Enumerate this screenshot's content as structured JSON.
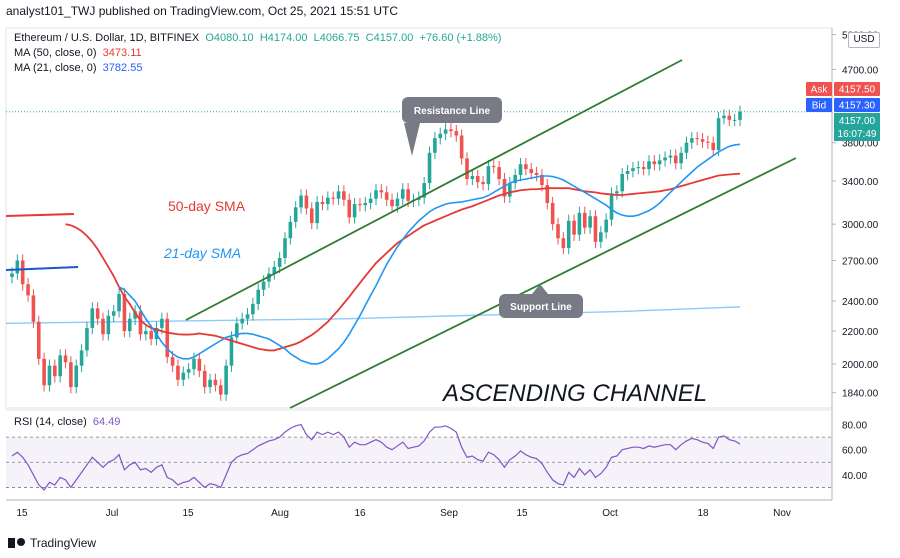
{
  "header": {
    "publisher": "analyst101_TWJ published on TradingView.com, Oct 25, 2021 15:51 UTC"
  },
  "instrument": {
    "name": "Ethereum / U.S. Dollar, 1D, BITFINEX",
    "open": "O4080.10",
    "high": "H4174.00",
    "low": "L4066.75",
    "close": "C4157.00",
    "change": "+76.60 (+1.88%)"
  },
  "indicators": {
    "ma50": {
      "label": "MA (50, close, 0)",
      "value": "3473.11",
      "color": "#e53935"
    },
    "ma21": {
      "label": "MA (21, close, 0)",
      "value": "3782.55",
      "color": "#2962ff"
    },
    "rsi": {
      "label": "RSI (14, close)",
      "value": "64.49",
      "color": "#7e57c2"
    }
  },
  "price_tags": {
    "ask_label": "Ask",
    "ask_value": "4157.50",
    "bid_label": "Bid",
    "bid_value": "4157.30",
    "last_value": "4157.00",
    "countdown": "16:07:49",
    "currency": "USD"
  },
  "annotations": {
    "resistance": "Resistance Line",
    "support": "Support Line",
    "sma50": "50-day SMA",
    "sma21": "21-day SMA",
    "channel": "ASCENDING CHANNEL"
  },
  "footer": {
    "brand": "TradingView"
  },
  "colors": {
    "up": "#26a69a",
    "down": "#ef5350",
    "channel": "#2e7d32",
    "ma50": "#e53935",
    "ma21": "#2196f3",
    "ma200": "#90caf9"
  },
  "chart_data": {
    "type": "candlestick",
    "timeframe": "1D",
    "x_tick_labels": [
      "15",
      "Jul",
      "15",
      "Aug",
      "16",
      "Sep",
      "15",
      "Oct",
      "18",
      "Nov"
    ],
    "y_tick_labels": [
      "5200.00",
      "4700.00",
      "4157.00",
      "3800.00",
      "3400.00",
      "3000.00",
      "2700.00",
      "2400.00",
      "2200.00",
      "2000.00",
      "1840.00"
    ],
    "y_scale": "log",
    "ylim": [
      1760,
      5300
    ],
    "rsi_tick_labels": [
      "80.00",
      "60.00",
      "40.00"
    ],
    "rsi_ylim": [
      20,
      90
    ],
    "rsi_bands": [
      70,
      50,
      30
    ],
    "closes": [
      2600,
      2700,
      2520,
      2440,
      2260,
      2030,
      1880,
      1990,
      1930,
      2050,
      2010,
      1870,
      1990,
      2080,
      2220,
      2350,
      2280,
      2180,
      2300,
      2330,
      2450,
      2200,
      2280,
      2330,
      2180,
      2200,
      2150,
      2220,
      2280,
      2040,
      1990,
      1910,
      1950,
      1970,
      2030,
      1960,
      1870,
      1910,
      1880,
      1830,
      1990,
      2160,
      2250,
      2280,
      2310,
      2380,
      2480,
      2540,
      2600,
      2650,
      2720,
      2880,
      3020,
      3150,
      3260,
      3140,
      3010,
      3200,
      3180,
      3240,
      3230,
      3300,
      3220,
      3060,
      3180,
      3170,
      3190,
      3230,
      3310,
      3290,
      3220,
      3160,
      3230,
      3320,
      3210,
      3220,
      3240,
      3380,
      3690,
      3850,
      3900,
      3950,
      3930,
      3880,
      3630,
      3420,
      3450,
      3390,
      3370,
      3550,
      3540,
      3420,
      3250,
      3380,
      3460,
      3570,
      3520,
      3480,
      3460,
      3360,
      3190,
      3000,
      2880,
      2800,
      3030,
      2910,
      3100,
      2970,
      3070,
      2850,
      2930,
      3040,
      3280,
      3300,
      3470,
      3500,
      3530,
      3540,
      3520,
      3600,
      3570,
      3610,
      3640,
      3660,
      3580,
      3690,
      3800,
      3850,
      3840,
      3810,
      3800,
      3720,
      4080,
      4110,
      4060,
      4060,
      4157
    ],
    "volatility_hint": "daily candles, range approx 3%",
    "sma50": [
      3000,
      2990,
      2970,
      2940,
      2900,
      2850,
      2790,
      2720,
      2650,
      2580,
      2500,
      2430,
      2380,
      2320,
      2270,
      2240,
      2220,
      2210,
      2200,
      2190,
      2185,
      2180,
      2178,
      2178,
      2180,
      2185,
      2180,
      2175,
      2170,
      2160,
      2150,
      2140,
      2130,
      2120,
      2110,
      2100,
      2090,
      2085,
      2080,
      2080,
      2090,
      2100,
      2110,
      2120,
      2135,
      2155,
      2175,
      2200,
      2230,
      2260,
      2300,
      2340,
      2385,
      2430,
      2480,
      2530,
      2580,
      2630,
      2680,
      2720,
      2760,
      2800,
      2840,
      2870,
      2900,
      2930,
      2960,
      2990,
      3010,
      3030,
      3050,
      3070,
      3090,
      3110,
      3130,
      3145,
      3160,
      3180,
      3200,
      3220,
      3240,
      3260,
      3275,
      3290,
      3300,
      3310,
      3315,
      3320,
      3320,
      3325,
      3330,
      3330,
      3330,
      3330,
      3330,
      3320,
      3310,
      3300,
      3295,
      3290,
      3280,
      3275,
      3270,
      3265,
      3265,
      3270,
      3275,
      3280,
      3285,
      3290,
      3295,
      3300,
      3310,
      3320,
      3335,
      3350,
      3365,
      3380,
      3395,
      3410,
      3425,
      3440,
      3455,
      3460,
      3465,
      3470,
      3473
    ],
    "sma21": [
      2500,
      2480,
      2440,
      2400,
      2340,
      2280,
      2230,
      2180,
      2130,
      2090,
      2060,
      2040,
      2030,
      2030,
      2040,
      2060,
      2080,
      2100,
      2120,
      2140,
      2160,
      2170,
      2180,
      2185,
      2185,
      2180,
      2170,
      2160,
      2150,
      2130,
      2110,
      2090,
      2060,
      2040,
      2020,
      2010,
      2000,
      2000,
      2010,
      2030,
      2060,
      2090,
      2130,
      2180,
      2240,
      2300,
      2370,
      2440,
      2510,
      2590,
      2670,
      2740,
      2810,
      2870,
      2930,
      2980,
      3030,
      3070,
      3110,
      3140,
      3160,
      3180,
      3190,
      3195,
      3200,
      3210,
      3220,
      3230,
      3240,
      3260,
      3290,
      3320,
      3350,
      3380,
      3400,
      3410,
      3420,
      3430,
      3440,
      3450,
      3450,
      3445,
      3430,
      3410,
      3380,
      3350,
      3320,
      3290,
      3260,
      3230,
      3200,
      3170,
      3130,
      3100,
      3080,
      3070,
      3070,
      3080,
      3100,
      3120,
      3150,
      3190,
      3240,
      3290,
      3340,
      3390,
      3440,
      3490,
      3540,
      3580,
      3620,
      3660,
      3700,
      3730,
      3760,
      3775,
      3782
    ],
    "ma200": [
      2250,
      2255,
      2260,
      2265,
      2270,
      2275,
      2280,
      2290,
      2300,
      2310,
      2320,
      2330,
      2345,
      2360
    ],
    "resistance_line": {
      "start": [
        "mid-Jul",
        2290
      ],
      "end": [
        "late Oct",
        5000
      ]
    },
    "support_line": {
      "start": [
        "early Aug",
        1760
      ],
      "end": [
        "Nov",
        3800
      ]
    },
    "rsi": [
      55,
      58,
      54,
      48,
      40,
      32,
      28,
      34,
      32,
      38,
      36,
      30,
      36,
      42,
      48,
      54,
      50,
      46,
      50,
      52,
      56,
      44,
      48,
      50,
      44,
      45,
      42,
      46,
      48,
      38,
      36,
      32,
      34,
      35,
      38,
      34,
      30,
      33,
      32,
      30,
      40,
      50,
      54,
      56,
      57,
      60,
      63,
      65,
      67,
      68,
      70,
      74,
      77,
      79,
      80,
      72,
      68,
      74,
      72,
      74,
      72,
      74,
      70,
      62,
      66,
      64,
      64,
      66,
      68,
      66,
      62,
      60,
      63,
      66,
      61,
      62,
      63,
      67,
      74,
      78,
      78,
      79,
      77,
      74,
      62,
      54,
      55,
      52,
      51,
      58,
      56,
      52,
      46,
      52,
      55,
      59,
      56,
      54,
      53,
      49,
      42,
      36,
      33,
      32,
      42,
      38,
      45,
      40,
      44,
      38,
      41,
      46,
      54,
      55,
      60,
      61,
      62,
      62,
      61,
      63,
      62,
      63,
      64,
      64,
      60,
      64,
      67,
      69,
      68,
      66,
      65,
      61,
      70,
      71,
      68,
      67,
      64.49
    ]
  }
}
